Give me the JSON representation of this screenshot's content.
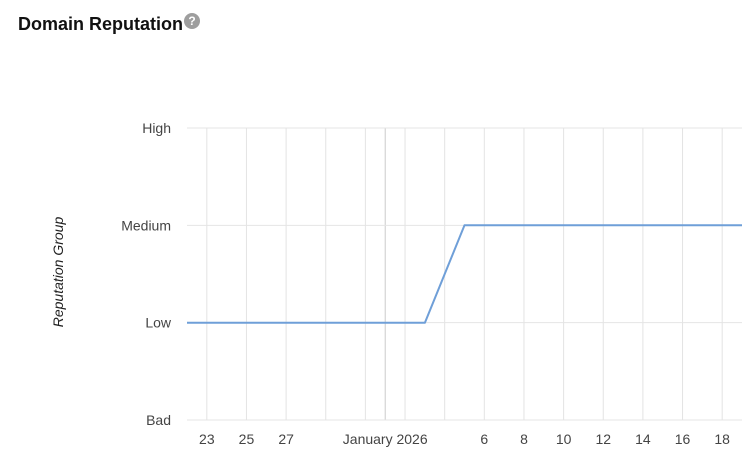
{
  "header": {
    "title": "Domain Reputation",
    "help_icon": "help-circle-icon"
  },
  "colors": {
    "line": "#6f9fd8",
    "grid": "#e4e4e4",
    "major_grid": "#cccccc",
    "tick_text": "#444444"
  },
  "chart_data": {
    "type": "line",
    "ylabel": "Reputation Group",
    "xlabel": "",
    "y_categories": [
      "Bad",
      "Low",
      "Medium",
      "High"
    ],
    "xlim": [
      "2025-12-22",
      "2026-01-19"
    ],
    "x_ticks": [
      {
        "date": "2025-12-23",
        "label": "23"
      },
      {
        "date": "2025-12-25",
        "label": "25"
      },
      {
        "date": "2025-12-27",
        "label": "27"
      },
      {
        "date": "2026-01-01",
        "label": "January 2026"
      },
      {
        "date": "2026-01-06",
        "label": "6"
      },
      {
        "date": "2026-01-08",
        "label": "8"
      },
      {
        "date": "2026-01-10",
        "label": "10"
      },
      {
        "date": "2026-01-12",
        "label": "12"
      },
      {
        "date": "2026-01-14",
        "label": "14"
      },
      {
        "date": "2026-01-16",
        "label": "16"
      },
      {
        "date": "2026-01-18",
        "label": "18"
      }
    ],
    "minor_grid_dates": [
      "2025-12-29",
      "2025-12-31",
      "2026-01-02",
      "2026-01-04"
    ],
    "series": [
      {
        "points": [
          {
            "x": "2025-12-22",
            "y": "Low"
          },
          {
            "x": "2026-01-03",
            "y": "Low"
          },
          {
            "x": "2026-01-05",
            "y": "Medium"
          },
          {
            "x": "2026-01-19",
            "y": "Medium"
          }
        ]
      }
    ],
    "grid": true,
    "legend": "none"
  }
}
